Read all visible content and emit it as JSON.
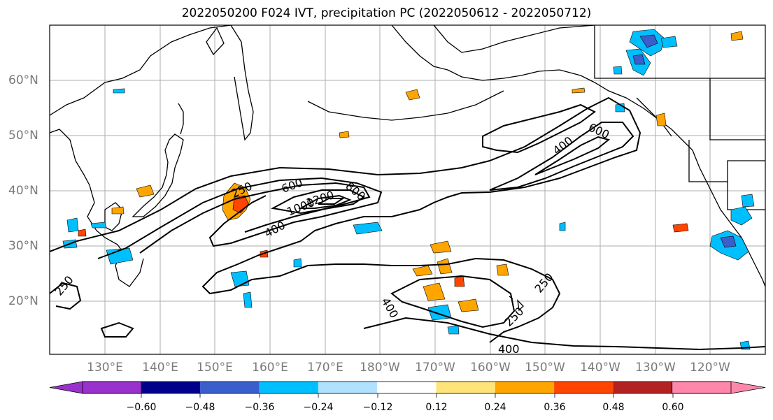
{
  "title": "2022050200 F024 IVT, precipitation PC (2022050612 - 2022050712)",
  "lat_labels": [
    "60°N",
    "50°N",
    "40°N",
    "30°N",
    "20°N"
  ],
  "lon_labels": [
    "130°E",
    "140°E",
    "150°E",
    "160°E",
    "170°E",
    "180°W",
    "170°W",
    "160°W",
    "150°W",
    "140°W",
    "130°W",
    "120°W"
  ],
  "contour_labels": [
    "250",
    "600",
    "800",
    "1000",
    "1200",
    "400",
    "400",
    "600",
    "400",
    "250",
    "250",
    "400",
    "250"
  ],
  "colorbar": {
    "tick_labels": [
      "−0.60",
      "−0.48",
      "−0.36",
      "−0.24",
      "−0.12",
      "0.12",
      "0.24",
      "0.36",
      "0.48",
      "0.60"
    ],
    "colors": [
      "#9932cc",
      "#00008b",
      "#3a5fcd",
      "#00bfff",
      "#b0e2ff",
      "#ffffff",
      "#ffe47a",
      "#ffa500",
      "#ff4500",
      "#b22222",
      "#ff88aa"
    ]
  }
}
